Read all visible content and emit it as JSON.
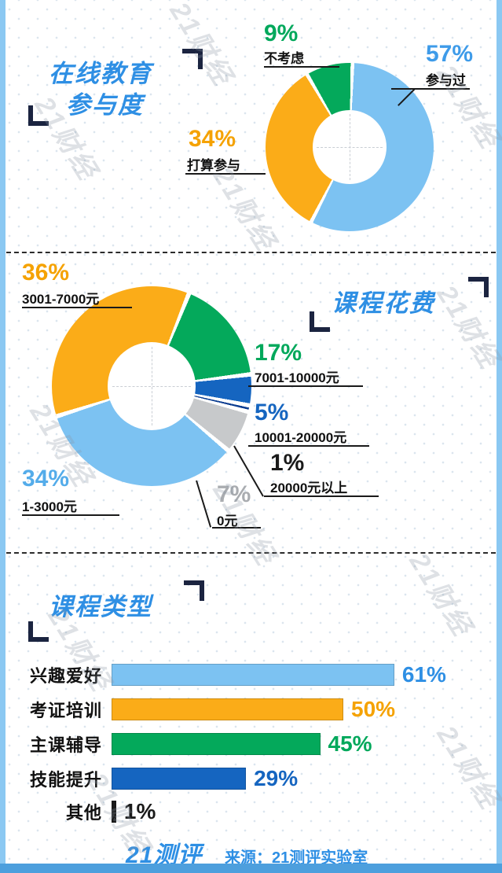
{
  "watermark": {
    "text": "21财经"
  },
  "footer": {
    "logo": "21测评",
    "source": "来源：21测评实验室"
  },
  "chart_data": [
    {
      "type": "pie",
      "donut": true,
      "title": "在线教育参与度",
      "title_lines": [
        "在线教育",
        "参与度"
      ],
      "labels": [
        "参与过",
        "打算参与",
        "不考虑"
      ],
      "values": [
        57,
        34,
        9
      ],
      "value_labels": [
        "57%",
        "34%",
        "9%"
      ],
      "colors": [
        "#7CC2F2",
        "#FBAC18",
        "#04A95B"
      ],
      "value_label_colors": [
        "#3E9BE9",
        "#F5A200",
        "#00A85B"
      ],
      "start_angle": 2,
      "legend_position": "callouts"
    },
    {
      "type": "pie",
      "donut": true,
      "title": "课程花费",
      "labels": [
        "7001-10000元",
        "10001-20000元",
        "20000元以上",
        "0元",
        "1-3000元",
        "3001-7000元"
      ],
      "values": [
        17,
        5,
        1,
        7,
        34,
        36
      ],
      "value_labels": [
        "17%",
        "5%",
        "1%",
        "7%",
        "34%",
        "36%"
      ],
      "colors": [
        "#04A95B",
        "#1565C0",
        "#0B3D91",
        "#C7C9CB",
        "#7CC2F2",
        "#FBAC18"
      ],
      "value_label_colors": [
        "#00A85B",
        "#1565C0",
        "#1A1A1A",
        "#A9ACB0",
        "#54ACEA",
        "#F5A200"
      ],
      "start_angle": 22,
      "legend_position": "callouts"
    },
    {
      "type": "bar",
      "orientation": "horizontal",
      "title": "课程类型",
      "categories": [
        "兴趣爱好",
        "考证培训",
        "主课辅导",
        "技能提升",
        "其他"
      ],
      "values": [
        61,
        50,
        45,
        29,
        1
      ],
      "value_labels": [
        "61%",
        "50%",
        "45%",
        "29%",
        "1%"
      ],
      "colors": [
        "#7CC2F2",
        "#FBAC18",
        "#04A95B",
        "#1565C0",
        "#1A1A1A"
      ],
      "value_label_colors": [
        "#2E8FE4",
        "#F5A200",
        "#00A85B",
        "#1565C0",
        "#1A1A1A"
      ],
      "xlim": [
        0,
        100
      ]
    }
  ]
}
